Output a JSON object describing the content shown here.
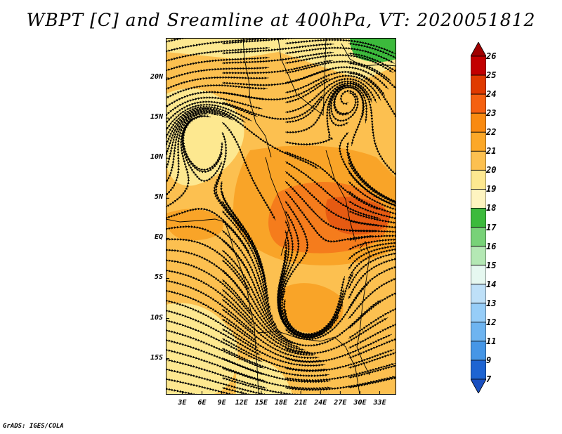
{
  "title": "WBPT [C] and Sreamline at 400hPa, VT: 2020051812",
  "footer": "GrADS: IGES/COLA",
  "lat_ticks": [
    "20N",
    "15N",
    "10N",
    "5N",
    "EQ",
    "5S",
    "10S",
    "15S"
  ],
  "lat_values": [
    20,
    15,
    10,
    5,
    0,
    -5,
    -10,
    -15
  ],
  "lon_ticks": [
    "3E",
    "6E",
    "9E",
    "12E",
    "15E",
    "18E",
    "21E",
    "24E",
    "27E",
    "30E",
    "33E"
  ],
  "lon_values": [
    3,
    6,
    9,
    12,
    15,
    18,
    21,
    24,
    27,
    30,
    33
  ],
  "map_extent": {
    "lon": [
      0.5,
      35.5
    ],
    "lat": [
      -19.5,
      25
    ]
  },
  "colorbar": {
    "labels": [
      "26",
      "25",
      "24",
      "23",
      "22",
      "21",
      "20",
      "19",
      "18",
      "17",
      "16",
      "15",
      "14",
      "13",
      "12",
      "11",
      "9",
      "7"
    ],
    "colors": [
      "#a00000",
      "#c20000",
      "#e03a00",
      "#f56010",
      "#f98a10",
      "#fca828",
      "#fcc050",
      "#fde890",
      "#fef4c0",
      "#3cba3c",
      "#78d278",
      "#b4e8b4",
      "#e6f8f0",
      "#bee0f8",
      "#96cdf8",
      "#6eb4f0",
      "#4696e6",
      "#1e64d2",
      "#1a50c0"
    ]
  },
  "legend_colors": {
    "c20": "#fde890",
    "c21": "#fcc050",
    "c22": "#f9a428",
    "c23": "#f57c1c",
    "c24": "#e65a12",
    "green": "#3cba3c"
  }
}
